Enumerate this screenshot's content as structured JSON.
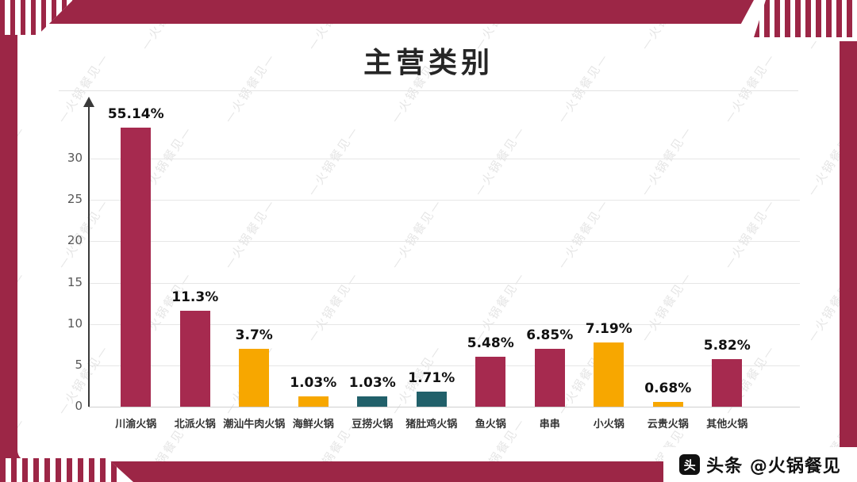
{
  "title": "主营类别",
  "watermark": {
    "text": "—火锅餐见—"
  },
  "credit": {
    "icon_glyph": "头",
    "text": "头条 @火锅餐见"
  },
  "colors": {
    "frame_red": "#9c2646",
    "bar_red": "#a62a4f",
    "bar_yellow": "#f7a700",
    "bar_teal": "#21606a"
  },
  "chart_data": {
    "type": "bar",
    "title": "主营类别",
    "categories": [
      "川渝火锅",
      "北派火锅",
      "潮汕牛肉火锅",
      "海鲜火锅",
      "豆捞火锅",
      "猪肚鸡火锅",
      "鱼火锅",
      "串串",
      "小火锅",
      "云贵火锅",
      "其他火锅"
    ],
    "value_labels": [
      "55.14%",
      "11.3%",
      "3.7%",
      "1.03%",
      "1.03%",
      "1.71%",
      "5.48%",
      "6.85%",
      "7.19%",
      "0.68%",
      "5.82%"
    ],
    "values_percent": [
      55.14,
      11.3,
      3.7,
      1.03,
      1.03,
      1.71,
      5.48,
      6.85,
      7.19,
      0.68,
      5.82
    ],
    "bar_heights_axis_units": [
      33.8,
      11.6,
      7.0,
      1.25,
      1.25,
      1.85,
      6.0,
      7.0,
      7.75,
      0.6,
      5.75
    ],
    "bar_colors": [
      "red",
      "red",
      "yellow",
      "yellow",
      "teal",
      "teal",
      "red",
      "red",
      "yellow",
      "yellow",
      "red"
    ],
    "yticks": [
      0,
      5,
      10,
      15,
      20,
      25,
      30
    ],
    "ylim": [
      0,
      35
    ],
    "xlabel": "",
    "ylabel": "",
    "grid": true,
    "legend": false,
    "note": "Bars drawn at axis-unit heights as rendered; data labels show percentages."
  }
}
